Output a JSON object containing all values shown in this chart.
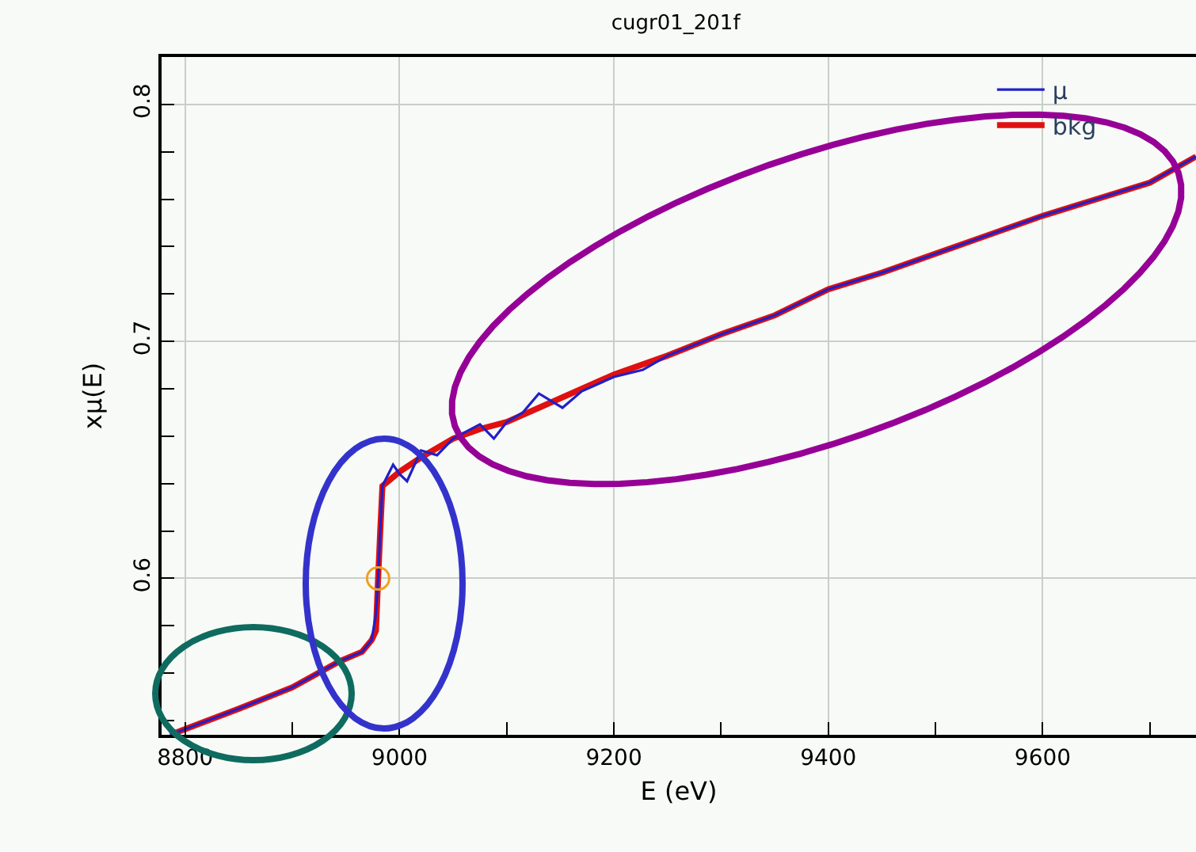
{
  "chart_data": {
    "type": "line",
    "title": "cugr01_201f",
    "xlabel": "E (eV)",
    "ylabel": "xμ(E)",
    "xlim": [
      8778,
      9743
    ],
    "ylim": [
      0.534,
      0.82
    ],
    "xticks": [
      8800,
      {
        "value": 8900,
        "label": null
      },
      9000,
      {
        "value": 9100,
        "label": null
      },
      9200,
      {
        "value": 9300,
        "label": null
      },
      9400,
      {
        "value": 9500,
        "label": null
      },
      9600,
      {
        "value": 9700,
        "label": null
      }
    ],
    "yticks": [
      {
        "value": 0.54,
        "label": null
      },
      {
        "value": 0.56,
        "label": null
      },
      {
        "value": 0.58,
        "label": null
      },
      0.6,
      {
        "value": 0.62,
        "label": null
      },
      {
        "value": 0.64,
        "label": null
      },
      {
        "value": 0.66,
        "label": null
      },
      {
        "value": 0.68,
        "label": null
      },
      0.7,
      {
        "value": 0.72,
        "label": null
      },
      {
        "value": 0.74,
        "label": null
      },
      {
        "value": 0.76,
        "label": null
      },
      {
        "value": 0.78,
        "label": null
      },
      0.8
    ],
    "grid": true,
    "legend": "top right",
    "series": [
      {
        "name": "μ",
        "color": "#2020c8",
        "x": [
          8786,
          8850,
          8900,
          8944,
          8965,
          8974,
          8978,
          8980,
          8982,
          8984,
          8994,
          9000,
          9007,
          9020,
          9035,
          9050,
          9075,
          9088,
          9100,
          9115,
          9130,
          9152,
          9170,
          9200,
          9227,
          9250,
          9300,
          9350,
          9400,
          9450,
          9500,
          9550,
          9600,
          9650,
          9700,
          9743
        ],
        "values": [
          0.534,
          0.545,
          0.554,
          0.565,
          0.569,
          0.574,
          0.585,
          0.6,
          0.62,
          0.639,
          0.648,
          0.644,
          0.641,
          0.654,
          0.652,
          0.659,
          0.665,
          0.659,
          0.666,
          0.67,
          0.678,
          0.672,
          0.679,
          0.685,
          0.688,
          0.694,
          0.703,
          0.711,
          0.722,
          0.729,
          0.737,
          0.745,
          0.753,
          0.76,
          0.767,
          0.778
        ]
      },
      {
        "name": "bkg",
        "color": "#e01010",
        "x": [
          8786,
          8850,
          8900,
          8944,
          8965,
          8974,
          8978,
          8980,
          8982,
          8984,
          9000,
          9020,
          9050,
          9075,
          9100,
          9130,
          9170,
          9200,
          9250,
          9300,
          9350,
          9400,
          9450,
          9500,
          9550,
          9600,
          9650,
          9700,
          9743
        ],
        "values": [
          0.534,
          0.545,
          0.554,
          0.565,
          0.569,
          0.574,
          0.578,
          0.6,
          0.62,
          0.639,
          0.645,
          0.651,
          0.659,
          0.663,
          0.666,
          0.672,
          0.68,
          0.686,
          0.694,
          0.703,
          0.711,
          0.722,
          0.729,
          0.737,
          0.745,
          0.753,
          0.76,
          0.767,
          0.778
        ]
      },
      {
        "type": "scatter",
        "marker": "circle",
        "color": "#f0a020",
        "x": [
          8980
        ],
        "values": [
          0.6
        ]
      }
    ]
  }
}
